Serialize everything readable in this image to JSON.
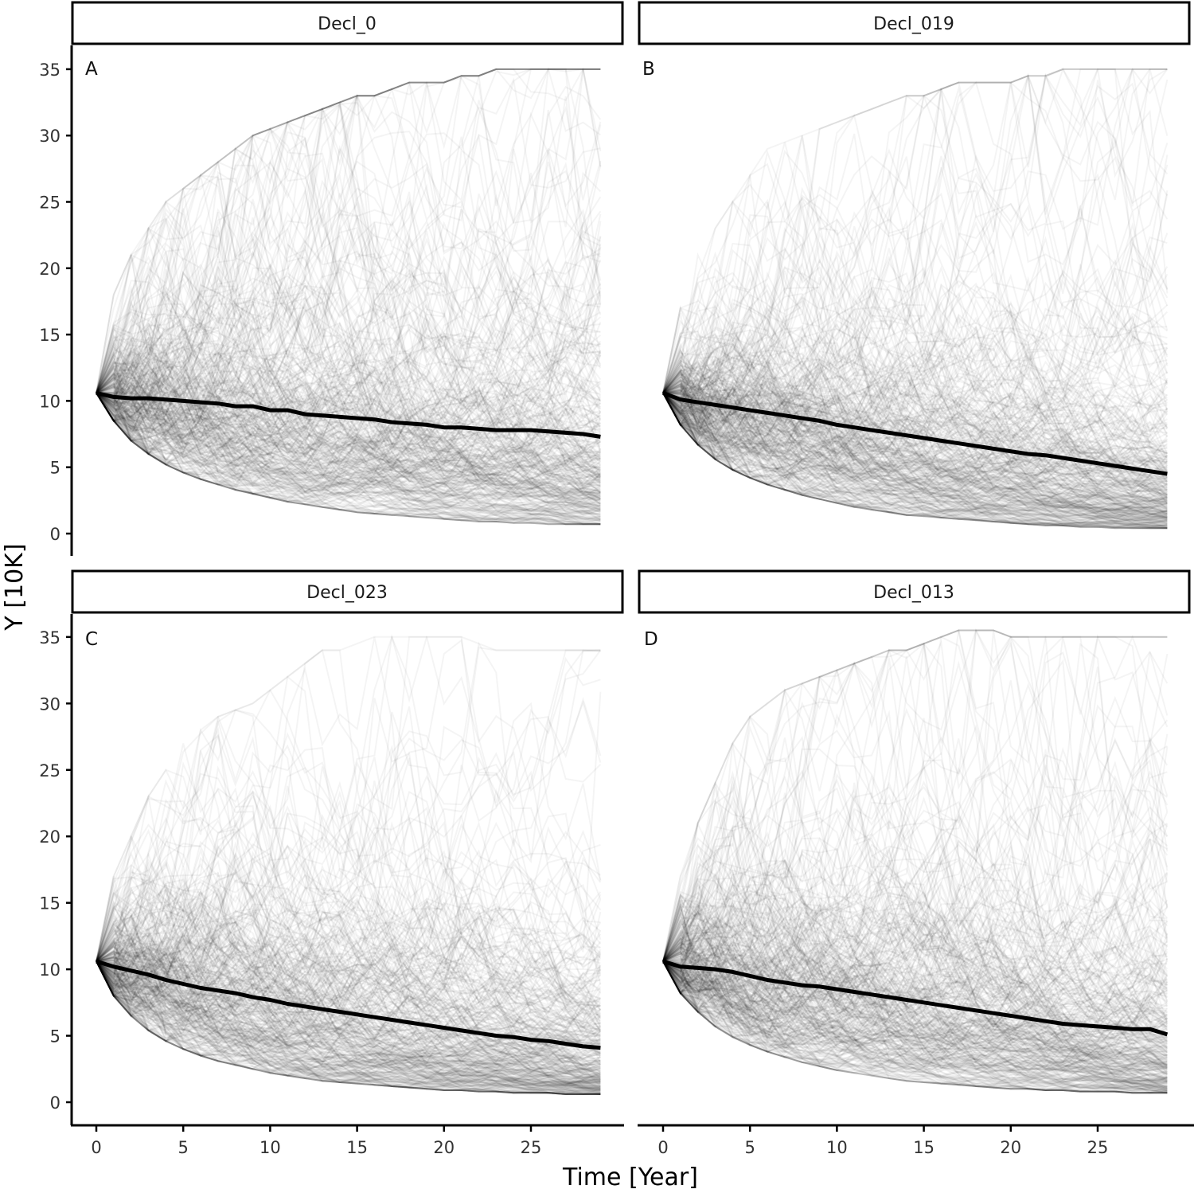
{
  "chart_data": {
    "type": "line",
    "title": "",
    "xlabel": "Time [Year]",
    "ylabel": "Y [10K]",
    "xlim": [
      -1.4,
      30.3
    ],
    "ylim": [
      -1.6,
      36.6
    ],
    "x_ticks": [
      0,
      5,
      10,
      15,
      20,
      25
    ],
    "y_ticks": [
      0,
      5,
      10,
      15,
      20,
      25,
      30,
      35
    ],
    "grid": false,
    "legend": "none",
    "layout": "facet 2x2",
    "description": "Each panel shows many (~1000) faint grey simulated trajectories starting at ~10.6 and spreading upward (max ~35) and downward (min ~0.5) over 29 years, with a thick black mean line.",
    "x": [
      0,
      1,
      2,
      3,
      4,
      5,
      6,
      7,
      8,
      9,
      10,
      11,
      12,
      13,
      14,
      15,
      16,
      17,
      18,
      19,
      20,
      21,
      22,
      23,
      24,
      25,
      26,
      27,
      28,
      29
    ],
    "panels": [
      {
        "strip": "Decl_0",
        "tag": "A",
        "mean": [
          10.6,
          10.3,
          10.2,
          10.2,
          10.1,
          10.0,
          9.9,
          9.8,
          9.6,
          9.6,
          9.3,
          9.3,
          9.0,
          8.9,
          8.8,
          8.7,
          8.6,
          8.4,
          8.3,
          8.2,
          8.0,
          8.0,
          7.9,
          7.8,
          7.8,
          7.8,
          7.7,
          7.6,
          7.5,
          7.3
        ],
        "upper_envelope": [
          10.6,
          17,
          20,
          22,
          24,
          25,
          26,
          27,
          28,
          29,
          29.5,
          30,
          30.5,
          31,
          31.5,
          32,
          32,
          32.5,
          33,
          33,
          33,
          33.5,
          33.5,
          34,
          34,
          34,
          34,
          34,
          34,
          34
        ],
        "lower_envelope": [
          10.6,
          8.5,
          7,
          6,
          5.2,
          4.6,
          4.1,
          3.7,
          3.3,
          3.0,
          2.7,
          2.4,
          2.2,
          2.0,
          1.8,
          1.6,
          1.5,
          1.4,
          1.3,
          1.2,
          1.1,
          1.0,
          0.9,
          0.9,
          0.8,
          0.8,
          0.7,
          0.7,
          0.7,
          0.7
        ]
      },
      {
        "strip": "Decl_019",
        "tag": "B",
        "mean": [
          10.6,
          10.1,
          9.9,
          9.7,
          9.5,
          9.3,
          9.1,
          8.9,
          8.7,
          8.5,
          8.2,
          8.0,
          7.8,
          7.6,
          7.4,
          7.2,
          7.0,
          6.8,
          6.6,
          6.4,
          6.2,
          6.0,
          5.9,
          5.7,
          5.5,
          5.3,
          5.1,
          4.9,
          4.7,
          4.5
        ],
        "upper_envelope": [
          10.6,
          16,
          20,
          22,
          24,
          26,
          28,
          28.5,
          29,
          29.5,
          30,
          30.5,
          31,
          31.5,
          32,
          32,
          32.5,
          33,
          33,
          33,
          33,
          33.5,
          33.5,
          34,
          34,
          34,
          34,
          34,
          34,
          34
        ],
        "lower_envelope": [
          10.6,
          8.2,
          6.7,
          5.6,
          4.8,
          4.2,
          3.7,
          3.3,
          2.9,
          2.6,
          2.3,
          2.0,
          1.8,
          1.6,
          1.4,
          1.3,
          1.2,
          1.1,
          1.0,
          0.9,
          0.8,
          0.7,
          0.6,
          0.6,
          0.5,
          0.5,
          0.4,
          0.4,
          0.4,
          0.4
        ]
      },
      {
        "strip": "Decl_023",
        "tag": "C",
        "mean": [
          10.6,
          10.2,
          9.9,
          9.6,
          9.2,
          8.9,
          8.6,
          8.4,
          8.2,
          7.9,
          7.7,
          7.4,
          7.2,
          7.0,
          6.8,
          6.6,
          6.4,
          6.2,
          6.0,
          5.8,
          5.6,
          5.4,
          5.2,
          5.0,
          4.9,
          4.7,
          4.6,
          4.4,
          4.2,
          4.1
        ],
        "upper_envelope": [
          10.6,
          16,
          19,
          22,
          24,
          26,
          27,
          28,
          28.5,
          29,
          30,
          31,
          32,
          33,
          33,
          33.5,
          34,
          34,
          34,
          34,
          34,
          34,
          33.5,
          33,
          33,
          33,
          33,
          33,
          33,
          33
        ],
        "lower_envelope": [
          10.6,
          8.0,
          6.5,
          5.4,
          4.6,
          4.0,
          3.5,
          3.1,
          2.8,
          2.5,
          2.2,
          2.0,
          1.8,
          1.6,
          1.5,
          1.4,
          1.3,
          1.2,
          1.1,
          1.0,
          0.9,
          0.9,
          0.8,
          0.8,
          0.7,
          0.7,
          0.7,
          0.6,
          0.6,
          0.6
        ]
      },
      {
        "strip": "Decl_013",
        "tag": "D",
        "mean": [
          10.6,
          10.2,
          10.1,
          10.0,
          9.8,
          9.5,
          9.2,
          9.0,
          8.8,
          8.7,
          8.5,
          8.3,
          8.1,
          7.9,
          7.7,
          7.5,
          7.3,
          7.1,
          6.9,
          6.7,
          6.5,
          6.3,
          6.1,
          5.9,
          5.8,
          5.7,
          5.6,
          5.5,
          5.5,
          5.1
        ],
        "upper_envelope": [
          10.6,
          16,
          20,
          23,
          26,
          28,
          29,
          30,
          30.5,
          31,
          31.5,
          32,
          32.5,
          33,
          33,
          33.5,
          34,
          34.5,
          34.5,
          34.5,
          34,
          34,
          34,
          34,
          34,
          34,
          34,
          34,
          34,
          34
        ],
        "lower_envelope": [
          10.6,
          8.2,
          6.8,
          5.7,
          4.9,
          4.3,
          3.8,
          3.4,
          3.0,
          2.7,
          2.4,
          2.2,
          2.0,
          1.8,
          1.6,
          1.5,
          1.4,
          1.3,
          1.2,
          1.1,
          1.0,
          1.0,
          0.9,
          0.9,
          0.8,
          0.8,
          0.8,
          0.7,
          0.7,
          0.7
        ]
      }
    ]
  },
  "figure": {
    "xlabel": "Time [Year]",
    "ylabel": "Y [10K]",
    "x_tick_labels": [
      "0",
      "5",
      "10",
      "15",
      "20",
      "25"
    ],
    "y_tick_labels": [
      "0",
      "5",
      "10",
      "15",
      "20",
      "25",
      "30",
      "35"
    ],
    "panels": [
      {
        "strip": "Decl_0",
        "tag": "A"
      },
      {
        "strip": "Decl_019",
        "tag": "B"
      },
      {
        "strip": "Decl_023",
        "tag": "C"
      },
      {
        "strip": "Decl_013",
        "tag": "D"
      }
    ],
    "colors": {
      "mean_line": "#000000",
      "trajectory": "#000000",
      "axis": "#000000",
      "strip_fill": "#ffffff"
    }
  }
}
